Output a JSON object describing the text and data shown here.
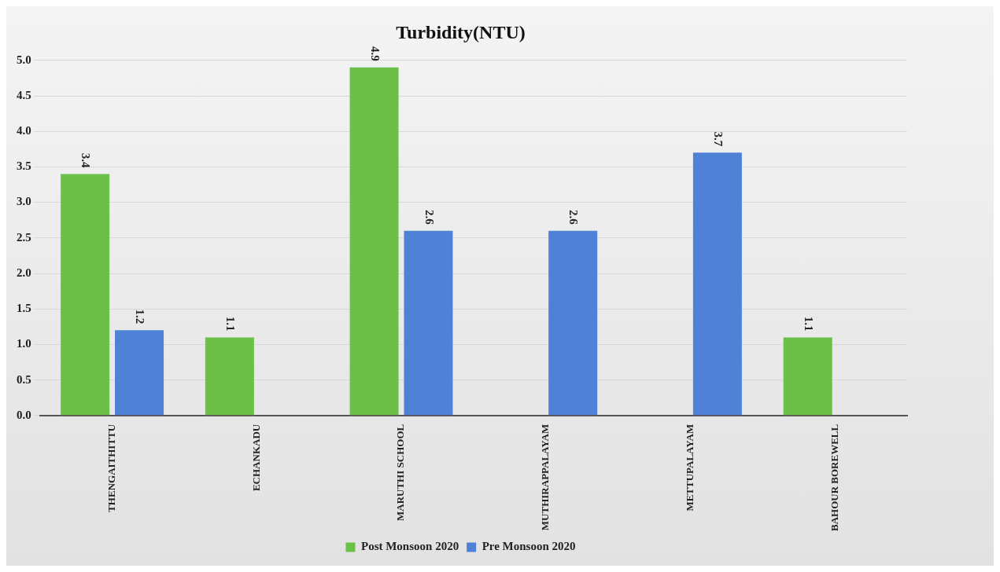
{
  "chart_data": {
    "type": "bar",
    "title": "Turbidity(NTU)",
    "categories": [
      "THENGAITHITTU",
      "ECHANKADU",
      "MARUTHI SCHOOL",
      "MUTHIRAPPALAYAM",
      "METTUPALAYAM",
      "BAHOUR BOREWELL"
    ],
    "series": [
      {
        "name": "Post Monsoon 2020",
        "color": "#6cbf47",
        "values": [
          3.4,
          1.1,
          4.9,
          null,
          null,
          1.1
        ]
      },
      {
        "name": "Pre Monsoon 2020",
        "color": "#4f81d6",
        "values": [
          1.2,
          null,
          2.6,
          2.6,
          3.7,
          null
        ]
      }
    ],
    "ylim": [
      0,
      5
    ],
    "yticks": [
      {
        "value": 0,
        "label": "0.0"
      },
      {
        "value": 0.5,
        "label": "0.5"
      },
      {
        "value": 1,
        "label": "1.0"
      },
      {
        "value": 1.5,
        "label": "1.5"
      },
      {
        "value": 2,
        "label": "2.0"
      },
      {
        "value": 2.5,
        "label": "2.5"
      },
      {
        "value": 3,
        "label": "3.0"
      },
      {
        "value": 3.5,
        "label": "3.5"
      },
      {
        "value": 4,
        "label": "4.0"
      },
      {
        "value": 4.5,
        "label": "4.5"
      },
      {
        "value": 5,
        "label": "5.0"
      }
    ],
    "grid": "y",
    "legend": "bottom",
    "data_labels": true
  }
}
